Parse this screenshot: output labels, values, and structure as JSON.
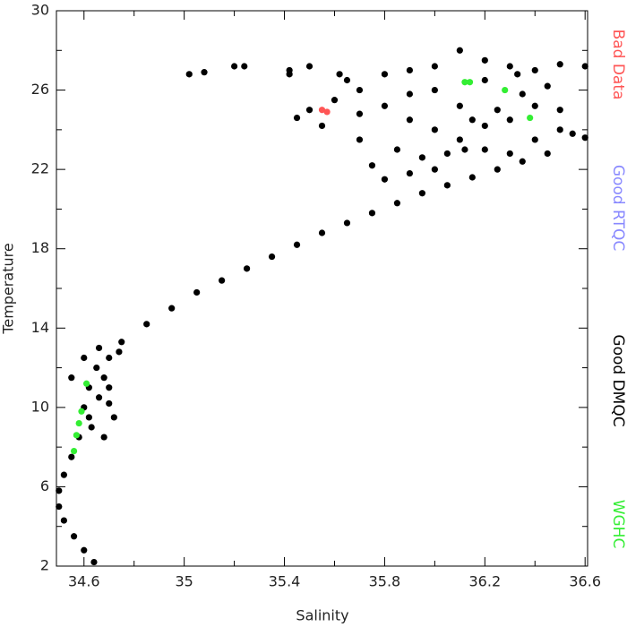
{
  "chart_data": {
    "type": "scatter",
    "x_label": "Salinity",
    "y_label": "Temperature",
    "xlim": [
      34.49,
      36.61
    ],
    "ylim": [
      2,
      30
    ],
    "xticks": [
      34.6,
      35.0,
      35.4,
      35.8,
      36.2,
      36.6
    ],
    "xminor_ticks": [
      34.8,
      35.2,
      35.6,
      36.0,
      36.4
    ],
    "yticks": [
      2,
      6,
      10,
      14,
      18,
      22,
      26,
      30
    ],
    "yminor_ticks": [
      4,
      8,
      12,
      16,
      20,
      24,
      28
    ],
    "series": [
      {
        "name": "Bad Data",
        "color": "#ff5555",
        "x": [
          35.55,
          35.57
        ],
        "y": [
          25.0,
          24.9
        ]
      },
      {
        "name": "Good RTQC",
        "color": "#8888ff",
        "x": [],
        "y": []
      },
      {
        "name": "Good DMQC",
        "color": "#000000",
        "x": [
          34.64,
          34.6,
          34.56,
          34.52,
          34.5,
          34.5,
          34.52,
          34.55,
          34.58,
          34.62,
          34.66,
          34.68,
          34.7,
          34.75,
          34.85,
          34.95,
          35.05,
          35.15,
          35.25,
          35.35,
          35.45,
          35.55,
          35.65,
          35.75,
          35.85,
          35.95,
          36.05,
          36.15,
          36.25,
          36.35,
          36.45,
          34.6,
          34.62,
          34.65,
          34.7,
          34.72,
          34.68,
          34.6,
          34.55,
          34.74,
          34.7,
          34.66,
          34.63,
          35.6,
          35.7,
          35.8,
          35.9,
          36.0,
          36.1,
          36.2,
          36.3,
          36.4,
          36.5,
          36.6,
          35.5,
          35.45,
          35.55,
          35.7,
          35.8,
          35.9,
          36.0,
          36.1,
          36.2,
          36.3,
          36.4,
          36.5,
          36.55,
          35.85,
          35.95,
          36.05,
          36.15,
          36.25,
          36.35,
          36.45,
          36.0,
          35.9,
          36.1,
          36.2,
          35.75,
          35.8,
          35.9,
          36.0,
          36.2,
          36.3,
          36.4,
          36.5,
          35.7,
          36.6,
          35.65,
          36.12,
          36.33,
          35.02,
          35.08,
          35.2,
          35.24,
          35.42,
          35.42,
          35.62,
          35.5
        ],
        "y": [
          2.2,
          2.8,
          3.5,
          4.3,
          5.0,
          5.8,
          6.6,
          7.5,
          8.5,
          9.5,
          10.5,
          11.5,
          12.5,
          13.3,
          14.2,
          15.0,
          15.8,
          16.4,
          17.0,
          17.6,
          18.2,
          18.8,
          19.3,
          19.8,
          20.3,
          20.8,
          21.2,
          21.6,
          22.0,
          22.4,
          22.8,
          10.0,
          11.0,
          12.0,
          11.0,
          9.5,
          8.5,
          12.5,
          11.5,
          12.8,
          10.2,
          13.0,
          9.0,
          25.5,
          26.0,
          26.8,
          27.0,
          27.2,
          28.0,
          27.5,
          27.2,
          27.0,
          27.3,
          27.2,
          25.0,
          24.6,
          24.2,
          24.8,
          25.2,
          24.5,
          24.0,
          23.5,
          23.0,
          22.8,
          23.5,
          24.0,
          23.8,
          23.0,
          22.6,
          22.8,
          24.5,
          25.0,
          25.8,
          26.2,
          26.0,
          25.8,
          25.2,
          26.5,
          22.2,
          21.5,
          21.8,
          22.0,
          24.2,
          24.5,
          25.2,
          25.0,
          23.5,
          23.6,
          26.5,
          23.0,
          26.8,
          26.8,
          26.9,
          27.2,
          27.2,
          27.0,
          26.8,
          26.8,
          27.2
        ]
      },
      {
        "name": "WGHC",
        "color": "#33ee33",
        "x": [
          36.12,
          36.14,
          36.38,
          36.28,
          34.59,
          34.58,
          34.57,
          34.61,
          34.56
        ],
        "y": [
          26.4,
          26.4,
          24.6,
          26.0,
          9.8,
          9.2,
          8.6,
          11.2,
          7.8
        ]
      }
    ]
  }
}
